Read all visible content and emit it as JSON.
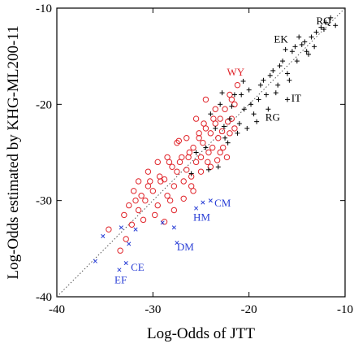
{
  "colors": {
    "series_red": "#e0242a",
    "series_blue": "#2a3fd6",
    "series_black": "#000000",
    "diagonal": "#555555"
  },
  "chart_data": {
    "type": "scatter",
    "title": "",
    "xlabel": "Log-Odds of JTT",
    "ylabel": "Log-Odds estimated by KHG-ML200-11",
    "xlim": [
      -40,
      -10
    ],
    "ylim": [
      -40,
      -10
    ],
    "xticks": [
      -40,
      -30,
      -20,
      -10
    ],
    "yticks": [
      -40,
      -30,
      -20,
      -10
    ],
    "xtick_labels": [
      "-40",
      "-30",
      "-20",
      "-10"
    ],
    "ytick_labels": [
      "-40",
      "-30",
      "-20",
      "-10"
    ],
    "grid": false,
    "legend": false,
    "reference_line": "y = x (dotted)",
    "series": [
      {
        "marker": "circle",
        "color": "red",
        "points": [
          [
            -34.6,
            -33.0
          ],
          [
            -33.4,
            -35.2
          ],
          [
            -32.8,
            -34.0
          ],
          [
            -32.2,
            -32.5
          ],
          [
            -33.0,
            -31.5
          ],
          [
            -32.5,
            -30.5
          ],
          [
            -31.5,
            -31.0
          ],
          [
            -31.0,
            -32.0
          ],
          [
            -30.8,
            -30.0
          ],
          [
            -30.5,
            -28.5
          ],
          [
            -31.2,
            -29.5
          ],
          [
            -30.0,
            -29.0
          ],
          [
            -29.8,
            -31.5
          ],
          [
            -29.5,
            -30.5
          ],
          [
            -29.2,
            -28.0
          ],
          [
            -28.8,
            -27.8
          ],
          [
            -28.5,
            -29.5
          ],
          [
            -28.2,
            -30.0
          ],
          [
            -28.0,
            -26.5
          ],
          [
            -27.8,
            -28.5
          ],
          [
            -27.5,
            -27.0
          ],
          [
            -27.2,
            -26.0
          ],
          [
            -27.0,
            -25.5
          ],
          [
            -26.8,
            -28.0
          ],
          [
            -26.5,
            -26.8
          ],
          [
            -26.2,
            -25.0
          ],
          [
            -26.0,
            -27.5
          ],
          [
            -25.8,
            -24.5
          ],
          [
            -25.5,
            -26.0
          ],
          [
            -25.2,
            -23.5
          ],
          [
            -25.0,
            -25.5
          ],
          [
            -24.8,
            -24.0
          ],
          [
            -24.5,
            -22.5
          ],
          [
            -24.2,
            -25.0
          ],
          [
            -24.0,
            -23.0
          ],
          [
            -23.8,
            -24.5
          ],
          [
            -23.5,
            -22.0
          ],
          [
            -23.2,
            -23.5
          ],
          [
            -23.0,
            -21.5
          ],
          [
            -22.8,
            -22.8
          ],
          [
            -22.5,
            -20.5
          ],
          [
            -22.2,
            -21.8
          ],
          [
            -22.0,
            -23.0
          ],
          [
            -21.8,
            -19.5
          ],
          [
            -21.5,
            -22.5
          ],
          [
            -21.2,
            -18.0
          ],
          [
            -22.0,
            -19.0
          ],
          [
            -24.5,
            -19.5
          ],
          [
            -23.5,
            -20.5
          ],
          [
            -25.5,
            -21.5
          ],
          [
            -26.5,
            -23.5
          ],
          [
            -27.5,
            -24.0
          ],
          [
            -28.5,
            -25.5
          ],
          [
            -29.5,
            -26.0
          ],
          [
            -30.5,
            -27.0
          ],
          [
            -31.5,
            -28.0
          ],
          [
            -32.0,
            -29.0
          ],
          [
            -26.0,
            -28.5
          ],
          [
            -25.0,
            -27.0
          ],
          [
            -24.0,
            -26.5
          ],
          [
            -23.0,
            -25.0
          ],
          [
            -28.8,
            -32.2
          ],
          [
            -27.8,
            -31.0
          ],
          [
            -26.8,
            -29.8
          ],
          [
            -25.8,
            -29.0
          ],
          [
            -25.2,
            -23.0
          ],
          [
            -24.7,
            -22.0
          ],
          [
            -23.7,
            -21.5
          ],
          [
            -22.7,
            -24.5
          ],
          [
            -22.3,
            -25.5
          ],
          [
            -21.8,
            -21.5
          ],
          [
            -21.5,
            -20.0
          ],
          [
            -24.3,
            -26.0
          ],
          [
            -23.3,
            -25.8
          ],
          [
            -26.3,
            -25.5
          ],
          [
            -27.3,
            -23.8
          ],
          [
            -28.3,
            -26.0
          ],
          [
            -29.3,
            -27.5
          ],
          [
            -30.3,
            -28.0
          ],
          [
            -31.8,
            -30.0
          ]
        ]
      },
      {
        "marker": "x",
        "color": "blue",
        "points": [
          [
            -36.0,
            -36.3
          ],
          [
            -35.2,
            -33.7
          ],
          [
            -33.5,
            -37.2
          ],
          [
            -33.3,
            -32.8
          ],
          [
            -32.8,
            -36.5
          ],
          [
            -32.5,
            -34.5
          ],
          [
            -31.8,
            -33.0
          ],
          [
            -29.0,
            -32.3
          ],
          [
            -27.8,
            -32.8
          ],
          [
            -27.5,
            -34.4
          ],
          [
            -25.5,
            -30.8
          ],
          [
            -24.8,
            -30.2
          ],
          [
            -24.0,
            -30.0
          ]
        ]
      },
      {
        "marker": "plus",
        "color": "black",
        "points": [
          [
            -24.5,
            -24.5
          ],
          [
            -24.0,
            -21.0
          ],
          [
            -23.5,
            -22.5
          ],
          [
            -23.0,
            -20.0
          ],
          [
            -22.5,
            -23.5
          ],
          [
            -22.0,
            -21.5
          ],
          [
            -21.5,
            -19.0
          ],
          [
            -21.0,
            -22.0
          ],
          [
            -20.5,
            -20.5
          ],
          [
            -20.0,
            -18.5
          ],
          [
            -19.5,
            -21.0
          ],
          [
            -19.0,
            -19.5
          ],
          [
            -18.5,
            -17.5
          ],
          [
            -18.0,
            -20.5
          ],
          [
            -17.5,
            -16.5
          ],
          [
            -17.0,
            -18.0
          ],
          [
            -16.5,
            -15.5
          ],
          [
            -16.0,
            -16.8
          ],
          [
            -15.5,
            -14.5
          ],
          [
            -15.0,
            -15.5
          ],
          [
            -14.5,
            -13.8
          ],
          [
            -14.0,
            -14.5
          ],
          [
            -13.5,
            -13.0
          ],
          [
            -13.0,
            -12.5
          ],
          [
            -12.5,
            -12.0
          ],
          [
            -12.0,
            -11.5
          ],
          [
            -11.5,
            -11.0
          ],
          [
            -11.0,
            -11.8
          ],
          [
            -22.8,
            -18.8
          ],
          [
            -21.8,
            -20.2
          ],
          [
            -20.8,
            -19.0
          ],
          [
            -19.8,
            -20.0
          ],
          [
            -18.8,
            -18.0
          ],
          [
            -17.8,
            -17.0
          ],
          [
            -16.8,
            -16.0
          ],
          [
            -15.8,
            -17.5
          ],
          [
            -15.2,
            -14.0
          ],
          [
            -14.2,
            -13.5
          ],
          [
            -13.2,
            -14.0
          ],
          [
            -12.2,
            -12.2
          ],
          [
            -20.2,
            -22.5
          ],
          [
            -19.2,
            -21.8
          ],
          [
            -21.2,
            -23.0
          ],
          [
            -22.2,
            -24.0
          ],
          [
            -23.2,
            -26.5
          ],
          [
            -24.2,
            -26.8
          ],
          [
            -16.2,
            -14.3
          ],
          [
            -14.8,
            -13.0
          ],
          [
            -13.8,
            -14.8
          ],
          [
            -17.2,
            -18.8
          ],
          [
            -16.0,
            -19.5
          ],
          [
            -18.2,
            -19.0
          ],
          [
            -25.5,
            -25.0
          ],
          [
            -26.0,
            -27.2
          ],
          [
            -22.6,
            -22.3
          ],
          [
            -20.6,
            -17.6
          ]
        ]
      }
    ],
    "annotations": [
      {
        "text": "RQ",
        "x": -13.0,
        "y": -11.7,
        "color": "black"
      },
      {
        "text": "EK",
        "x": -17.4,
        "y": -13.6,
        "color": "black"
      },
      {
        "text": "WY",
        "x": -22.3,
        "y": -17.0,
        "color": "red"
      },
      {
        "text": "IT",
        "x": -15.6,
        "y": -19.7,
        "color": "black"
      },
      {
        "text": "RG",
        "x": -18.3,
        "y": -21.7,
        "color": "black"
      },
      {
        "text": "CM",
        "x": -23.6,
        "y": -30.6,
        "color": "blue"
      },
      {
        "text": "HM",
        "x": -25.8,
        "y": -32.1,
        "color": "blue"
      },
      {
        "text": "DM",
        "x": -27.5,
        "y": -35.2,
        "color": "blue"
      },
      {
        "text": "CE",
        "x": -32.3,
        "y": -37.3,
        "color": "blue"
      },
      {
        "text": "EF",
        "x": -34.0,
        "y": -38.6,
        "color": "blue"
      }
    ]
  }
}
